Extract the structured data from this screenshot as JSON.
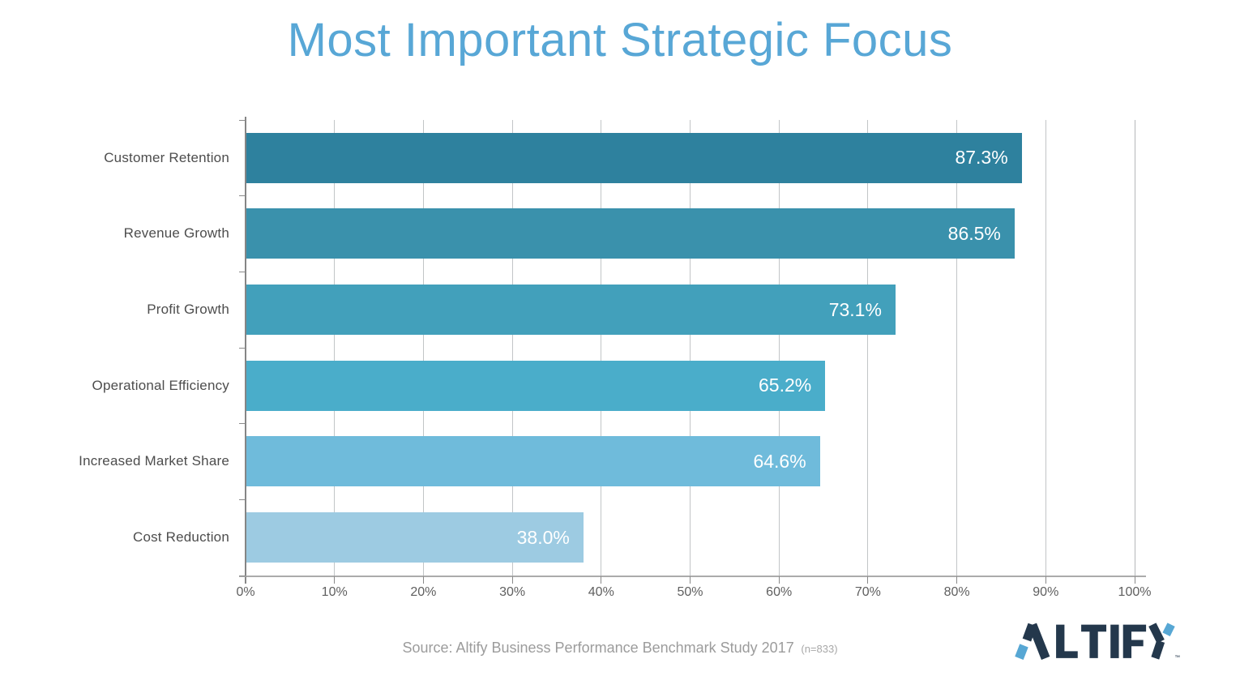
{
  "title": "Most Important Strategic Focus",
  "chart_data": {
    "type": "bar",
    "orientation": "horizontal",
    "title": "Most Important Strategic Focus",
    "categories": [
      "Customer Retention",
      "Revenue Growth",
      "Profit Growth",
      "Operational Efficiency",
      "Increased Market Share",
      "Cost Reduction"
    ],
    "values": [
      87.3,
      86.5,
      73.1,
      65.2,
      64.6,
      38.0
    ],
    "value_labels": [
      "87.3%",
      "86.5%",
      "73.1%",
      "65.2%",
      "64.6%",
      "38.0%"
    ],
    "bar_colors": [
      "#2e819e",
      "#3a91ac",
      "#42a0bb",
      "#4aadca",
      "#6fbbdb",
      "#9dcbe2"
    ],
    "value_label_color": "#ffffff",
    "xlim": [
      0,
      100
    ],
    "x_tick_step": 10,
    "x_tick_labels": [
      "0%",
      "10%",
      "20%",
      "30%",
      "40%",
      "50%",
      "60%",
      "70%",
      "80%",
      "90%",
      "100%"
    ],
    "grid": "vertical",
    "legend": "none"
  },
  "source": {
    "text": "Source: Altify Business Performance Benchmark Study 2017",
    "sample": "(n=833)"
  },
  "logo": {
    "name": "ALTIFY",
    "trademark": "TM",
    "dark_color": "#24384c",
    "accent_color": "#57a7d4"
  },
  "colors": {
    "title": "#58a7d6",
    "gridline": "#c2c5c7",
    "axis": "#858585",
    "category_label": "#4d4d4d",
    "tick_label": "#5f5f5f",
    "source_text": "#9c9c9c",
    "background": "#ffffff"
  }
}
